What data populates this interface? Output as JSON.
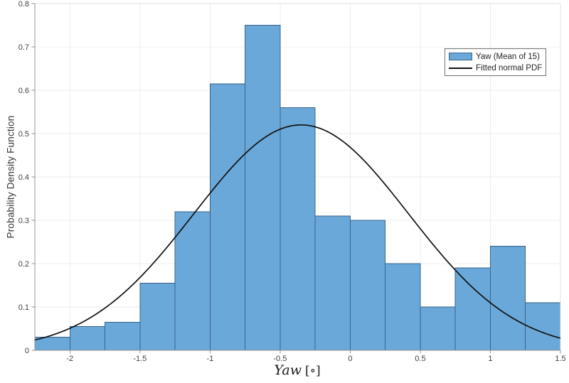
{
  "axes": {
    "ylabel": "Probability Density Function",
    "xlabel_word": "Yaw",
    "xlabel_unit": "[∘]",
    "x_tick_labels": [
      "-2",
      "-1.5",
      "-1",
      "-0.5",
      "0",
      "0.5",
      "1",
      "1.5"
    ],
    "y_tick_labels": [
      "0",
      "0.1",
      "0.2",
      "0.3",
      "0.4",
      "0.5",
      "0.6",
      "0.7",
      "0.8"
    ]
  },
  "legend": {
    "position": "upper-right",
    "items": [
      {
        "label": "Yaw (Mean of 15)",
        "marker": "patch",
        "fill": "#69a8d8",
        "edge": "#3a648c"
      },
      {
        "label": "Fitted normal PDF",
        "marker": "line",
        "color": "#111111"
      }
    ]
  },
  "chart_data": {
    "type": "bar",
    "subtype": "histogram-with-fitted-normal-curve",
    "title": "",
    "xlabel": "Yaw [∘]",
    "ylabel": "Probability Density Function",
    "xlim": [
      -2.25,
      1.5
    ],
    "ylim": [
      0,
      0.8
    ],
    "x_ticks": [
      -2,
      -1.5,
      -1,
      -0.5,
      0,
      0.5,
      1,
      1.5
    ],
    "y_ticks": [
      0,
      0.1,
      0.2,
      0.3,
      0.4,
      0.5,
      0.6,
      0.7,
      0.8
    ],
    "grid": true,
    "legend_position": "upper right",
    "series": [
      {
        "name": "Yaw (Mean of 15)",
        "kind": "histogram",
        "bin_start": -2.25,
        "bin_width": 0.25,
        "bin_edges": [
          -2.25,
          -2,
          -1.75,
          -1.5,
          -1.25,
          -1,
          -0.75,
          -0.5,
          -0.25,
          0,
          0.25,
          0.5,
          0.75,
          1,
          1.25,
          1.5
        ],
        "values": [
          0.03,
          0.055,
          0.065,
          0.155,
          0.32,
          0.615,
          0.75,
          0.56,
          0.31,
          0.3,
          0.2,
          0.1,
          0.19,
          0.24,
          0.11
        ],
        "fill": "#69a8d8",
        "edge": "#3a648c"
      },
      {
        "name": "Fitted normal PDF",
        "kind": "line",
        "model": "normal-pdf",
        "mu": -0.35,
        "sigma": 0.765,
        "peak": 0.52,
        "color": "#111111"
      }
    ],
    "colors": {
      "grid": "#ececec",
      "spine_left_bottom": "#949494",
      "spine_top_right": "#e2e2e2",
      "tick": "#949494",
      "tick_label": "#3f3f3f"
    }
  }
}
